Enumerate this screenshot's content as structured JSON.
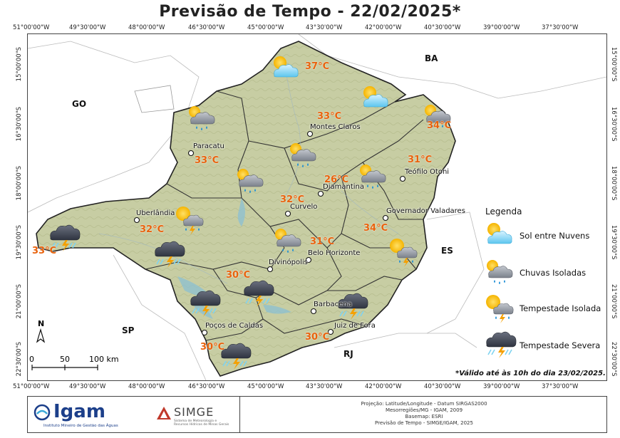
{
  "title": "Previsão de Tempo - 22/02/2025*",
  "lon_ticks": [
    "51°00'00\"W",
    "49°30'00\"W",
    "48°00'00\"W",
    "46°30'00\"W",
    "45°00'00\"W",
    "43°30'00\"W",
    "42°00'00\"W",
    "40°30'00\"W",
    "39°00'00\"W",
    "37°30'00\"W"
  ],
  "lat_ticks": [
    "15°00'00\"S",
    "16°30'00\"S",
    "18°00'00\"S",
    "19°30'00\"S",
    "21°00'00\"S",
    "22°30'00\"S"
  ],
  "states": {
    "ba": "BA",
    "go": "GO",
    "es": "ES",
    "sp": "SP",
    "rj": "RJ"
  },
  "cities": {
    "montes_claros": "Montes Claros",
    "paracatu": "Paracatu",
    "teofilo_otoni": "Teófilo Otoni",
    "diamantina": "Diamantina",
    "curvelo": "Curvelo",
    "uberlandia": "Uberlândia",
    "governador_valadares": "Governador Valadares",
    "belo_horizonte": "Belo Horizonte",
    "divinopolis": "Divinópolis",
    "barbacena": "Barbacena",
    "pocos_de_caldas": "Poços de Caldas",
    "juiz_de_fora": "Juiz de Fora"
  },
  "temps": {
    "north": "37°C",
    "montes_claros": "33°C",
    "northeast": "34°C",
    "paracatu": "33°C",
    "teofilo_otoni": "31°C",
    "diamantina": "26°C",
    "curvelo": "32°C",
    "uberlandia": "32°C",
    "vale_aco": "34°C",
    "triangulo": "33°C",
    "belo_horizonte": "31°C",
    "oeste": "30°C",
    "zona_mata": "30°C",
    "sul": "30°C"
  },
  "legend": {
    "title": "Legenda",
    "items": [
      {
        "label": "Sol entre Nuvens",
        "icon": "sun-cloud-icon"
      },
      {
        "label": "Chuvas Isoladas",
        "icon": "rain-cloud-icon"
      },
      {
        "label": "Tempestade Isolada",
        "icon": "isolated-storm-icon"
      },
      {
        "label": "Tempestade Severa",
        "icon": "severe-storm-icon"
      }
    ]
  },
  "scale": {
    "labels": [
      "0",
      "50",
      "100 km"
    ]
  },
  "north_arrow": "N",
  "validity_note": "*Válido até às 10h do dia 23/02/2025.",
  "footer": {
    "igam": "Igam",
    "igam_sub": "Instituto Mineiro de Gestão das Águas",
    "simge": "SIMGE",
    "simge_sub": "Sistema de Meteorologia e Recursos Hídricos de Minas Gerais",
    "credits": [
      "Projeção: Latitude/Longitude - Datum SIRGAS2000",
      "Mesorregiões/MG - IGAM, 2009",
      "Basemap: ESRI",
      "Previsão de Tempo - SIMGE/IGAM, 2025"
    ]
  },
  "colors": {
    "temperature": "#e8620c",
    "map_fill": "#c9cfa7",
    "region_border": "#333333"
  }
}
